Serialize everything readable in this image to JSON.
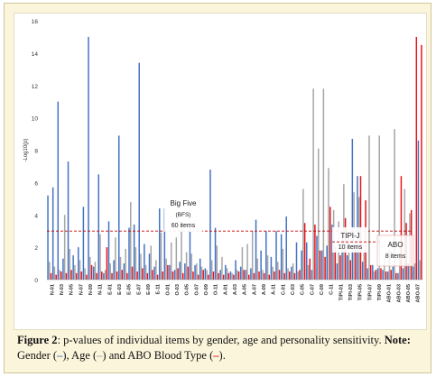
{
  "chart_data": {
    "type": "bar",
    "title": "",
    "xlabel": "",
    "ylabel": "-Log10(p)",
    "ylim": [
      0,
      16
    ],
    "yticks": [
      0,
      2,
      4,
      6,
      8,
      10,
      12,
      14,
      16
    ],
    "grid": false,
    "legend": "none",
    "colors": {
      "gender": "#4472c4",
      "age": "#a5a5a5",
      "abo": "#e8141c",
      "dashed_line": "#c00000"
    },
    "series_names": [
      "Gender",
      "Age",
      "ABO Blood Type"
    ],
    "categories": [
      "N-01",
      "N-03",
      "N-05",
      "N-07",
      "N-09",
      "N-11",
      "E-01",
      "E-03",
      "E-05",
      "E-07",
      "E-09",
      "E-11",
      "O-01",
      "O-03",
      "O-05",
      "O-07",
      "O-09",
      "O-11",
      "A-01",
      "A-03",
      "A-05",
      "A-07",
      "A-09",
      "A-11",
      "C-01",
      "C-03",
      "C-05",
      "C-07",
      "C-09",
      "C-11",
      "TIPI-01",
      "TIPI-03",
      "TIPI-05",
      "TIPI-07",
      "TIPI-09",
      "ABO-01",
      "ABO-03",
      "ABO-05",
      "ABO-07"
    ],
    "bar_groups": [
      [
        5.2,
        1.1,
        0.4
      ],
      [
        5.7,
        0.8,
        0.3
      ],
      [
        11.0,
        0.6,
        0.5
      ],
      [
        1.3,
        4.0,
        0.4
      ],
      [
        7.3,
        1.9,
        0.6
      ],
      [
        1.5,
        0.9,
        0.4
      ],
      [
        2.0,
        1.2,
        0.5
      ],
      [
        4.5,
        0.7,
        0.3
      ],
      [
        15.0,
        1.4,
        0.9
      ],
      [
        0.8,
        1.1,
        0.4
      ],
      [
        6.5,
        2.8,
        0.5
      ],
      [
        0.4,
        0.6,
        2.0
      ],
      [
        3.6,
        1.0,
        0.4
      ],
      [
        1.2,
        2.6,
        0.5
      ],
      [
        8.9,
        1.4,
        0.6
      ],
      [
        1.0,
        1.9,
        0.4
      ],
      [
        3.2,
        4.8,
        0.8
      ],
      [
        3.4,
        2.0,
        0.5
      ],
      [
        13.4,
        1.6,
        0.7
      ],
      [
        2.2,
        0.9,
        0.4
      ],
      [
        1.6,
        2.1,
        0.6
      ],
      [
        0.8,
        1.2,
        0.3
      ],
      [
        4.4,
        2.9,
        0.5
      ],
      [
        4.4,
        1.3,
        0.9
      ],
      [
        0.9,
        2.3,
        0.5
      ],
      [
        0.6,
        2.6,
        0.7
      ],
      [
        1.1,
        3.2,
        0.4
      ],
      [
        1.0,
        1.7,
        0.8
      ],
      [
        3.3,
        1.6,
        0.5
      ],
      [
        0.9,
        1.0,
        0.3
      ],
      [
        1.3,
        0.8,
        0.6
      ],
      [
        0.7,
        0.6,
        0.3
      ],
      [
        6.8,
        1.2,
        0.5
      ],
      [
        3.2,
        2.1,
        0.4
      ],
      [
        0.6,
        1.4,
        0.3
      ],
      [
        0.9,
        0.7,
        0.4
      ],
      [
        0.5,
        0.4,
        0.3
      ],
      [
        1.2,
        0.6,
        0.5
      ],
      [
        0.8,
        2.0,
        0.6
      ],
      [
        0.6,
        2.2,
        0.3
      ],
      [
        0.7,
        3.0,
        0.4
      ],
      [
        3.7,
        1.3,
        0.5
      ],
      [
        1.8,
        0.6,
        0.4
      ],
      [
        3.0,
        1.5,
        0.3
      ],
      [
        1.4,
        0.8,
        0.5
      ],
      [
        3.0,
        1.1,
        0.6
      ],
      [
        2.8,
        1.9,
        0.4
      ],
      [
        3.9,
        0.7,
        0.5
      ],
      [
        0.8,
        1.0,
        0.4
      ],
      [
        2.3,
        0.5,
        0.6
      ],
      [
        1.8,
        5.6,
        3.5
      ],
      [
        2.3,
        0.9,
        1.3
      ],
      [
        0.6,
        11.8,
        3.4
      ],
      [
        2.7,
        8.1,
        1.8
      ],
      [
        1.8,
        11.8,
        1.4
      ],
      [
        2.1,
        6.9,
        4.5
      ],
      [
        3.4,
        4.3,
        2.0
      ],
      [
        1.0,
        3.6,
        1.5
      ],
      [
        2.7,
        5.9,
        3.8
      ],
      [
        1.5,
        2.8,
        1.2
      ],
      [
        8.7,
        5.4,
        2.2
      ],
      [
        6.4,
        5.1,
        6.4
      ],
      [
        1.1,
        1.9,
        4.9
      ],
      [
        0.7,
        8.9,
        0.9
      ],
      [
        0.9,
        0.5,
        0.6
      ],
      [
        0.7,
        8.9,
        0.7
      ],
      [
        0.6,
        1.3,
        0.5
      ],
      [
        0.5,
        1.8,
        0.6
      ],
      [
        0.8,
        9.3,
        0.4
      ],
      [
        0.4,
        1.7,
        6.4
      ],
      [
        0.7,
        5.6,
        3.5
      ],
      [
        1.0,
        4.1,
        4.3
      ],
      [
        0.8,
        1.0,
        15.0
      ],
      [
        8.6,
        1.2,
        14.5
      ]
    ],
    "threshold_line_y": 3.0,
    "annotations": [
      {
        "label": "Big Five",
        "sublabel": "(BFS)",
        "count": "60 items"
      },
      {
        "label": "TIPI-J",
        "count": "10 items"
      },
      {
        "label": "ABO",
        "count": "8 items"
      }
    ]
  },
  "caption": {
    "figure_label": "Figure 2",
    "text_1": ": p-values of individual items by gender, age and personality sensitivity. ",
    "note_label": "Note:",
    "text_2": " Gender (",
    "text_3": "), Age (",
    "text_4": ") and ABO Blood Type (",
    "text_5": ")."
  }
}
